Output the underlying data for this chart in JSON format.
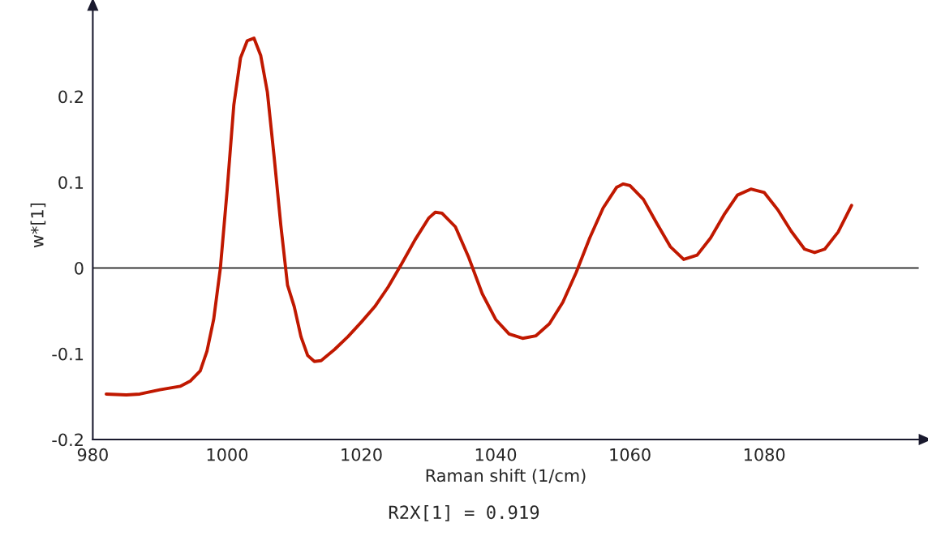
{
  "chart_data": {
    "type": "line",
    "xlabel": "Raman shift (1/cm)",
    "ylabel": "w*[1]",
    "annotations": [
      "R2X[1] = 0.919"
    ],
    "xlim": [
      980,
      1103
    ],
    "ylim": [
      -0.2,
      0.3
    ],
    "xticks": [
      980,
      1000,
      1020,
      1040,
      1060,
      1080
    ],
    "yticks": [
      -0.2,
      -0.1,
      0,
      0.1,
      0.2
    ],
    "grid": false,
    "legend": false,
    "marker": "none",
    "line_style": "solid",
    "ref_lines": [
      {
        "axis": "y",
        "value": 0,
        "color": "#000000"
      }
    ],
    "series": [
      {
        "color": "#c01800",
        "x": [
          982,
          985,
          987,
          990,
          993,
          994.5,
          996,
          997,
          998,
          999,
          1000,
          1001,
          1002,
          1003,
          1004,
          1005,
          1006,
          1007,
          1008,
          1009,
          1010,
          1011,
          1012,
          1013,
          1014,
          1016,
          1018,
          1020,
          1022,
          1024,
          1026,
          1028,
          1030,
          1031,
          1032,
          1034,
          1036,
          1038,
          1040,
          1042,
          1044,
          1046,
          1048,
          1050,
          1052,
          1054,
          1056,
          1058,
          1059,
          1060,
          1062,
          1064,
          1066,
          1068,
          1070,
          1072,
          1074,
          1076,
          1078,
          1080,
          1082,
          1084,
          1086,
          1087.5,
          1089,
          1091,
          1093
        ],
        "values": [
          -0.147,
          -0.148,
          -0.147,
          -0.142,
          -0.138,
          -0.132,
          -0.12,
          -0.097,
          -0.06,
          0.0,
          0.09,
          0.19,
          0.245,
          0.265,
          0.268,
          0.248,
          0.205,
          0.13,
          0.05,
          -0.02,
          -0.045,
          -0.08,
          -0.102,
          -0.109,
          -0.108,
          -0.095,
          -0.08,
          -0.063,
          -0.045,
          -0.022,
          0.005,
          0.033,
          0.058,
          0.065,
          0.064,
          0.048,
          0.012,
          -0.03,
          -0.06,
          -0.077,
          -0.082,
          -0.079,
          -0.065,
          -0.04,
          -0.005,
          0.035,
          0.07,
          0.094,
          0.098,
          0.096,
          0.08,
          0.052,
          0.025,
          0.01,
          0.015,
          0.035,
          0.062,
          0.085,
          0.092,
          0.088,
          0.068,
          0.043,
          0.022,
          0.018,
          0.022,
          0.042,
          0.073
        ]
      }
    ]
  }
}
